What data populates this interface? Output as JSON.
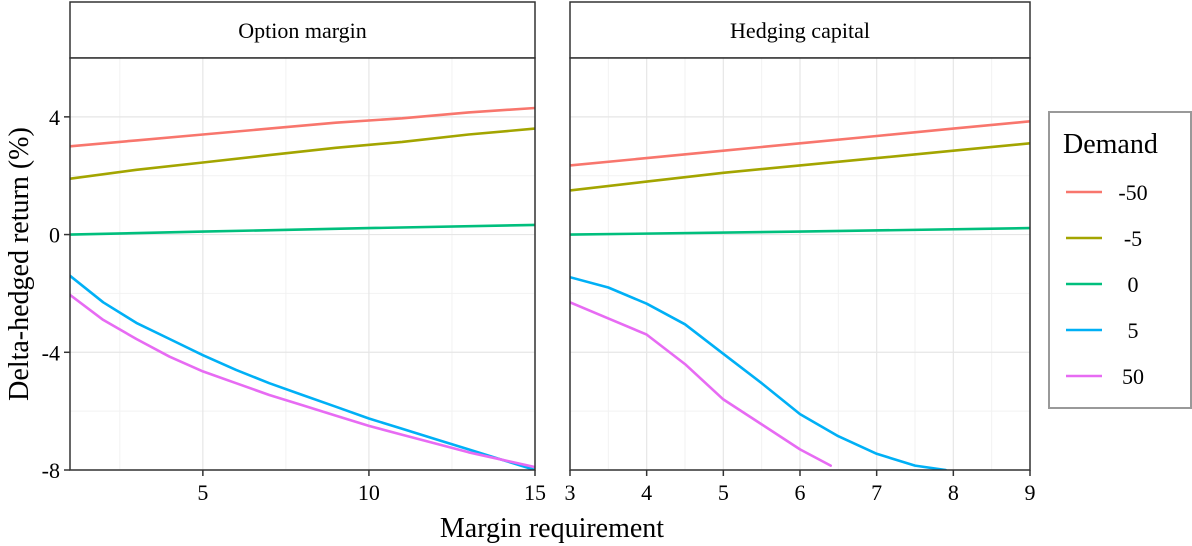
{
  "chart_data": {
    "type": "line",
    "xlabel": "Margin requirement",
    "ylabel": "Delta-hedged return (%)",
    "ylim": [
      -8,
      6
    ],
    "y_ticks": [
      -8,
      -4,
      0,
      4
    ],
    "grid": true,
    "legend": {
      "title": "Demand",
      "placement": "right",
      "entries": [
        "-50",
        "-5",
        "0",
        "5",
        "50"
      ]
    },
    "colors": {
      "-50": "#F8766D",
      "-5": "#A3A500",
      "0": "#00BF7D",
      "5": "#00B0F6",
      "50": "#E76BF3"
    },
    "panels": [
      {
        "title": "Option margin",
        "xlim": [
          1,
          15
        ],
        "x_ticks": [
          5,
          10,
          15
        ],
        "series": [
          {
            "name": "-50",
            "x": [
              1,
              3,
              5,
              7,
              9,
              11,
              13,
              15
            ],
            "y": [
              3.0,
              3.2,
              3.4,
              3.6,
              3.8,
              3.95,
              4.15,
              4.3
            ]
          },
          {
            "name": "-5",
            "x": [
              1,
              3,
              5,
              7,
              9,
              11,
              13,
              15
            ],
            "y": [
              1.9,
              2.2,
              2.45,
              2.7,
              2.95,
              3.15,
              3.4,
              3.6
            ]
          },
          {
            "name": "0",
            "x": [
              1,
              5,
              10,
              15
            ],
            "y": [
              0.0,
              0.1,
              0.22,
              0.33
            ]
          },
          {
            "name": "5",
            "x": [
              1,
              2,
              3,
              4,
              5,
              6,
              7,
              8,
              9,
              10,
              11,
              12,
              13,
              14,
              15
            ],
            "y": [
              -1.4,
              -2.3,
              -3.0,
              -3.55,
              -4.1,
              -4.6,
              -5.05,
              -5.45,
              -5.85,
              -6.25,
              -6.6,
              -6.95,
              -7.3,
              -7.65,
              -8.0
            ]
          },
          {
            "name": "50",
            "x": [
              1,
              2,
              3,
              4,
              5,
              6,
              7,
              8,
              9,
              10,
              11,
              12,
              13,
              14,
              15
            ],
            "y": [
              -2.05,
              -2.9,
              -3.55,
              -4.15,
              -4.65,
              -5.05,
              -5.45,
              -5.8,
              -6.15,
              -6.5,
              -6.8,
              -7.1,
              -7.4,
              -7.65,
              -7.9
            ]
          }
        ]
      },
      {
        "title": "Hedging capital",
        "xlim": [
          3,
          9
        ],
        "x_ticks": [
          3,
          4,
          5,
          6,
          7,
          8,
          9
        ],
        "series": [
          {
            "name": "-50",
            "x": [
              3,
              4,
              5,
              6,
              7,
              8,
              9
            ],
            "y": [
              2.35,
              2.6,
              2.85,
              3.1,
              3.35,
              3.6,
              3.85
            ]
          },
          {
            "name": "-5",
            "x": [
              3,
              4,
              5,
              6,
              7,
              8,
              9
            ],
            "y": [
              1.5,
              1.8,
              2.1,
              2.35,
              2.6,
              2.85,
              3.1
            ]
          },
          {
            "name": "0",
            "x": [
              3,
              6,
              9
            ],
            "y": [
              0.0,
              0.1,
              0.22
            ]
          },
          {
            "name": "5",
            "x": [
              3,
              3.5,
              4,
              4.5,
              5,
              5.5,
              6,
              6.5,
              7,
              7.5,
              7.9
            ],
            "y": [
              -1.45,
              -1.8,
              -2.35,
              -3.05,
              -4.05,
              -5.05,
              -6.1,
              -6.85,
              -7.45,
              -7.85,
              -8.0
            ]
          },
          {
            "name": "50",
            "x": [
              3,
              3.5,
              4,
              4.5,
              5,
              5.5,
              6,
              6.4
            ],
            "y": [
              -2.3,
              -2.85,
              -3.4,
              -4.4,
              -5.6,
              -6.45,
              -7.3,
              -7.85
            ]
          }
        ]
      }
    ]
  }
}
